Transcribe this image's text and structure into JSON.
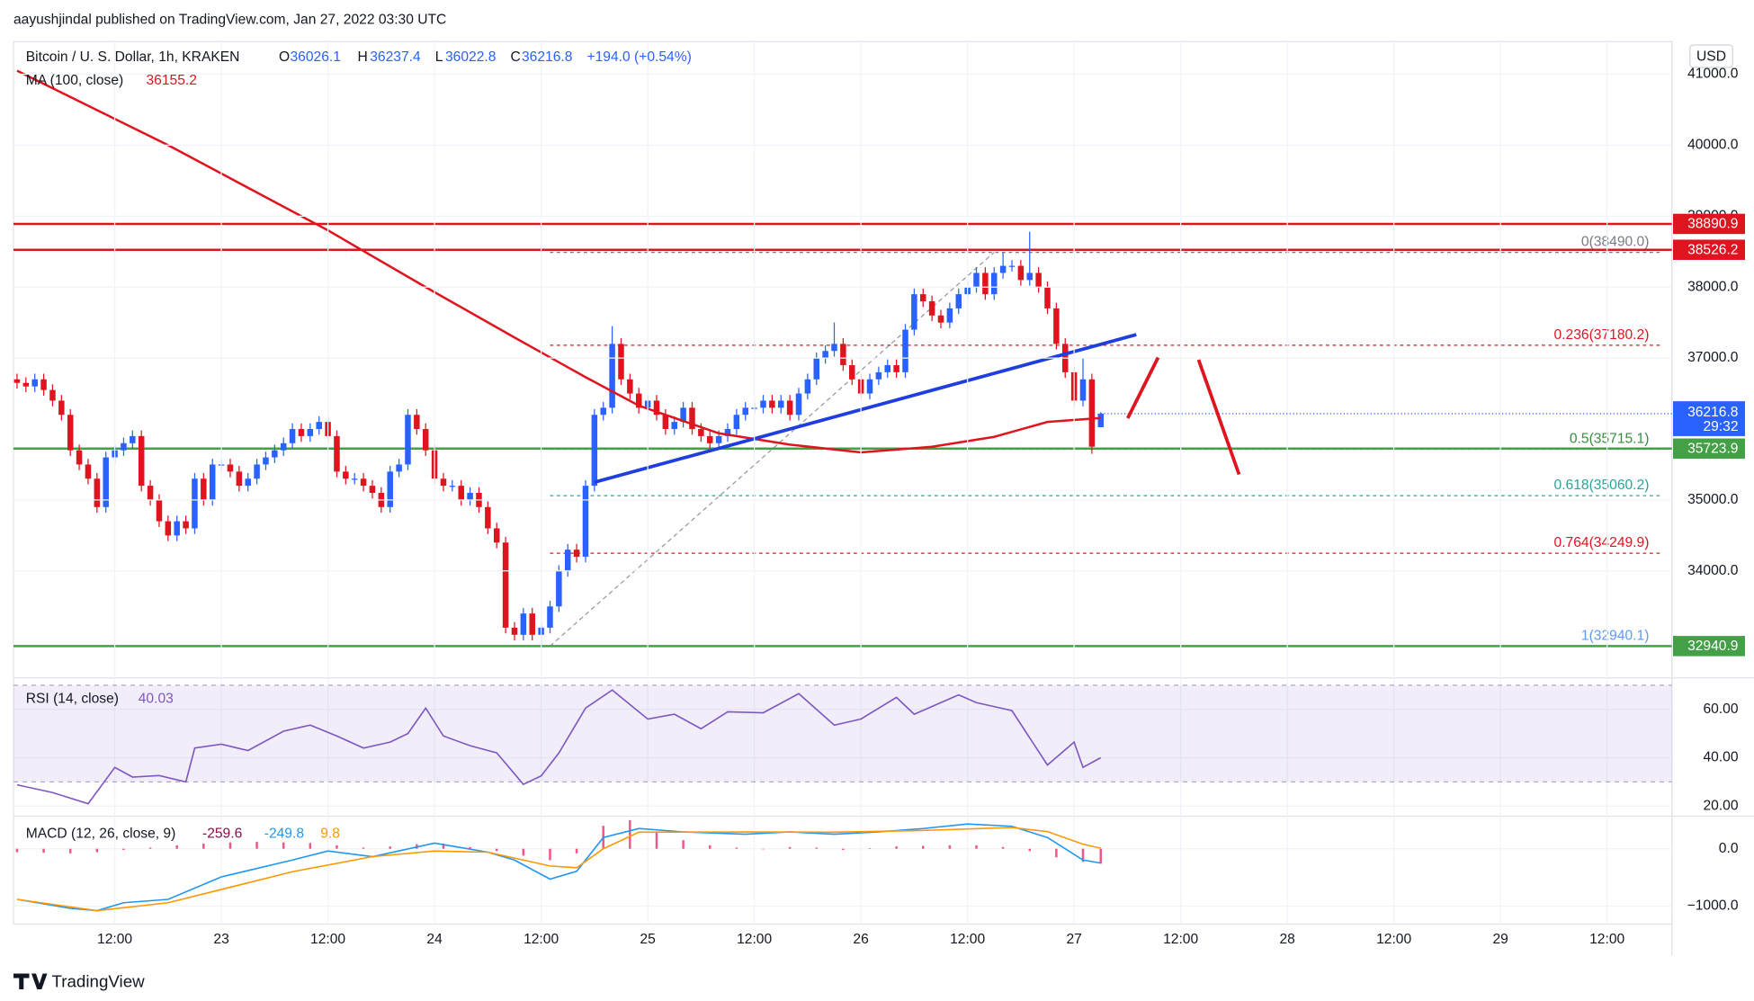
{
  "header": {
    "byline": "aayushjindal published on TradingView.com, Jan 27, 2022 03:30 UTC"
  },
  "footer": {
    "brand": "TradingView"
  },
  "chart_data": {
    "type": "candlestick",
    "symbol": "Bitcoin / U. S. Dollar, 1h, KRAKEN",
    "ohlc_letters": [
      "O",
      "H",
      "L",
      "C"
    ],
    "change": "+194.0 (+0.54%)",
    "currency": "USD",
    "countdown": "29:32",
    "up_color": "#2962ff",
    "down_color": "#e0141e",
    "xlim": [
      -0.4,
      186.3
    ],
    "ylim": [
      32524,
      41460
    ],
    "xticks": [
      {
        "value": 11,
        "label": "12:00"
      },
      {
        "value": 23,
        "label": "23"
      },
      {
        "value": 35,
        "label": "12:00"
      },
      {
        "value": 47,
        "label": "24"
      },
      {
        "value": 59,
        "label": "12:00"
      },
      {
        "value": 71,
        "label": "25"
      },
      {
        "value": 83,
        "label": "12:00"
      },
      {
        "value": 95,
        "label": "26"
      },
      {
        "value": 107,
        "label": "12:00"
      },
      {
        "value": 119,
        "label": "27"
      },
      {
        "value": 131,
        "label": "12:00"
      },
      {
        "value": 143,
        "label": "28"
      },
      {
        "value": 155,
        "label": "12:00"
      },
      {
        "value": 167,
        "label": "29"
      },
      {
        "value": 179,
        "label": "12:00"
      }
    ],
    "yticks": [
      {
        "value": 34000,
        "label": "34000.0"
      },
      {
        "value": 35000,
        "label": "35000.0"
      },
      {
        "value": 37000,
        "label": "37000.0"
      },
      {
        "value": 38000,
        "label": "38000.0"
      },
      {
        "value": 39000,
        "label": "39000.0"
      },
      {
        "value": 40000,
        "label": "40000.0"
      },
      {
        "value": 41000,
        "label": "41000.0"
      }
    ],
    "grid": true,
    "candles": [
      [
        36700,
        36780,
        36570,
        36650
      ],
      [
        36650,
        36730,
        36520,
        36600
      ],
      [
        36600,
        36780,
        36520,
        36700
      ],
      [
        36700,
        36780,
        36470,
        36550
      ],
      [
        36550,
        36630,
        36320,
        36400
      ],
      [
        36400,
        36480,
        36120,
        36200
      ],
      [
        36200,
        36280,
        35620,
        35700
      ],
      [
        35700,
        35780,
        35420,
        35500
      ],
      [
        35500,
        35580,
        35220,
        35300
      ],
      [
        35300,
        35380,
        34820,
        34900
      ],
      [
        34900,
        35680,
        34820,
        35600
      ],
      [
        35600,
        35780,
        35520,
        35700
      ],
      [
        35700,
        35880,
        35620,
        35800
      ],
      [
        35800,
        35980,
        35720,
        35900
      ],
      [
        35900,
        35980,
        35120,
        35200
      ],
      [
        35200,
        35280,
        34920,
        35000
      ],
      [
        35000,
        35080,
        34620,
        34700
      ],
      [
        34700,
        34780,
        34420,
        34500
      ],
      [
        34500,
        34780,
        34420,
        34700
      ],
      [
        34700,
        34780,
        34520,
        34600
      ],
      [
        34600,
        35380,
        34520,
        35300
      ],
      [
        35300,
        35380,
        34920,
        35000
      ],
      [
        35000,
        35580,
        34920,
        35500
      ],
      [
        35500,
        35580,
        35420,
        35500
      ],
      [
        35500,
        35580,
        35320,
        35400
      ],
      [
        35400,
        35480,
        35120,
        35200
      ],
      [
        35200,
        35380,
        35120,
        35300
      ],
      [
        35300,
        35580,
        35220,
        35500
      ],
      [
        35500,
        35680,
        35420,
        35600
      ],
      [
        35600,
        35780,
        35520,
        35700
      ],
      [
        35700,
        35880,
        35620,
        35800
      ],
      [
        35800,
        36080,
        35720,
        36000
      ],
      [
        36000,
        36080,
        35820,
        35900
      ],
      [
        35900,
        36080,
        35820,
        36000
      ],
      [
        36000,
        36180,
        35920,
        36100
      ],
      [
        36100,
        36180,
        35820,
        35900
      ],
      [
        35900,
        35980,
        35320,
        35400
      ],
      [
        35400,
        35480,
        35220,
        35300
      ],
      [
        35300,
        35380,
        35220,
        35300
      ],
      [
        35300,
        35380,
        35120,
        35200
      ],
      [
        35200,
        35280,
        35020,
        35100
      ],
      [
        35100,
        35180,
        34820,
        34900
      ],
      [
        34900,
        35480,
        34820,
        35400
      ],
      [
        35400,
        35580,
        35320,
        35500
      ],
      [
        35500,
        36280,
        35420,
        36200
      ],
      [
        36200,
        36280,
        35920,
        36000
      ],
      [
        36000,
        36080,
        35620,
        35700
      ],
      [
        35700,
        35780,
        35220,
        35300
      ],
      [
        35300,
        35380,
        35120,
        35200
      ],
      [
        35200,
        35280,
        35120,
        35200
      ],
      [
        35200,
        35280,
        34920,
        35000
      ],
      [
        35000,
        35180,
        34920,
        35100
      ],
      [
        35100,
        35180,
        34820,
        34900
      ],
      [
        34900,
        34980,
        34520,
        34600
      ],
      [
        34600,
        34680,
        34320,
        34400
      ],
      [
        34400,
        34480,
        33120,
        33200
      ],
      [
        33200,
        33280,
        33020,
        33100
      ],
      [
        33100,
        33480,
        33020,
        33400
      ],
      [
        33400,
        33480,
        33020,
        33100
      ],
      [
        33100,
        33280,
        32940,
        33200
      ],
      [
        33200,
        33580,
        33120,
        33500
      ],
      [
        33500,
        34080,
        33420,
        34000
      ],
      [
        34000,
        34380,
        33920,
        34300
      ],
      [
        34300,
        34380,
        34120,
        34200
      ],
      [
        34200,
        35280,
        34120,
        35200
      ],
      [
        35200,
        36280,
        35120,
        36200
      ],
      [
        36200,
        36380,
        36120,
        36300
      ],
      [
        36300,
        37450,
        36220,
        37200
      ],
      [
        37200,
        37280,
        36620,
        36700
      ],
      [
        36700,
        36780,
        36420,
        36500
      ],
      [
        36500,
        36580,
        36220,
        36300
      ],
      [
        36300,
        36480,
        36220,
        36400
      ],
      [
        36400,
        36480,
        36120,
        36200
      ],
      [
        36200,
        36280,
        35920,
        36000
      ],
      [
        36000,
        36180,
        35920,
        36100
      ],
      [
        36100,
        36380,
        36020,
        36300
      ],
      [
        36300,
        36380,
        35920,
        36000
      ],
      [
        36000,
        36080,
        35820,
        35900
      ],
      [
        35900,
        35980,
        35720,
        35800
      ],
      [
        35800,
        35980,
        35720,
        35900
      ],
      [
        35900,
        36080,
        35820,
        36000
      ],
      [
        36000,
        36280,
        35920,
        36200
      ],
      [
        36200,
        36380,
        36120,
        36300
      ],
      [
        36300,
        36380,
        36220,
        36300
      ],
      [
        36300,
        36480,
        36220,
        36400
      ],
      [
        36400,
        36480,
        36220,
        36300
      ],
      [
        36300,
        36480,
        36220,
        36400
      ],
      [
        36400,
        36480,
        36120,
        36200
      ],
      [
        36200,
        36580,
        36120,
        36500
      ],
      [
        36500,
        36780,
        36420,
        36700
      ],
      [
        36700,
        37080,
        36620,
        37000
      ],
      [
        37000,
        37180,
        36920,
        37100
      ],
      [
        37100,
        37500,
        37020,
        37200
      ],
      [
        37200,
        37280,
        36820,
        36900
      ],
      [
        36900,
        36980,
        36620,
        36700
      ],
      [
        36700,
        36780,
        36420,
        36500
      ],
      [
        36500,
        36780,
        36420,
        36700
      ],
      [
        36700,
        36880,
        36620,
        36800
      ],
      [
        36800,
        36980,
        36720,
        36900
      ],
      [
        36900,
        36980,
        36720,
        36800
      ],
      [
        36800,
        37480,
        36720,
        37400
      ],
      [
        37400,
        37980,
        37320,
        37900
      ],
      [
        37900,
        37980,
        37720,
        37800
      ],
      [
        37800,
        37880,
        37520,
        37600
      ],
      [
        37600,
        37680,
        37420,
        37500
      ],
      [
        37500,
        37780,
        37420,
        37700
      ],
      [
        37700,
        37980,
        37620,
        37900
      ],
      [
        37900,
        38080,
        37820,
        38000
      ],
      [
        38000,
        38280,
        37920,
        38200
      ],
      [
        38200,
        38280,
        37820,
        37900
      ],
      [
        37900,
        38280,
        37820,
        38200
      ],
      [
        38200,
        38490,
        38120,
        38300
      ],
      [
        38300,
        38380,
        38220,
        38300
      ],
      [
        38300,
        38380,
        38020,
        38100
      ],
      [
        38100,
        38780,
        38020,
        38200
      ],
      [
        38200,
        38280,
        37920,
        38000
      ],
      [
        38000,
        38080,
        37620,
        37700
      ],
      [
        37700,
        37780,
        37120,
        37200
      ],
      [
        37200,
        37280,
        36720,
        36800
      ],
      [
        36800,
        36880,
        36320,
        36400
      ],
      [
        36400,
        37000,
        36320,
        36700
      ],
      [
        36700,
        36780,
        35650,
        35750
      ],
      [
        36026.1,
        36237.4,
        36022.8,
        36216.8
      ]
    ],
    "ma": {
      "name": "MA (100, close)",
      "color": "#e0141e",
      "x": [
        0,
        17,
        35,
        46,
        56,
        64,
        70,
        79,
        87,
        95,
        103,
        110,
        116,
        122
      ],
      "values": [
        41050,
        40000,
        38800,
        38000,
        37290,
        36730,
        36330,
        35940,
        35780,
        35670,
        35750,
        35890,
        36100,
        36155.2
      ]
    },
    "levels": [
      {
        "value": 38890.9,
        "color": "#e0141e"
      },
      {
        "value": 38526.2,
        "color": "#e0141e"
      },
      {
        "value": 35723.9,
        "color": "#43a047"
      },
      {
        "value": 32940.9,
        "color": "#43a047"
      }
    ],
    "trendline": {
      "color": "#1e3ee0",
      "x": [
        65,
        126
      ],
      "values": [
        35250,
        37330
      ]
    },
    "fib": {
      "x": [
        60,
        185
      ],
      "diagonal_x": [
        60,
        110
      ],
      "levels": [
        {
          "value": 38490,
          "label": "0(38490.0)",
          "color": "#787b86"
        },
        {
          "value": 37180.2,
          "label": "0.236(37180.2)",
          "color": "#e0141e"
        },
        {
          "value": 35715.1,
          "label": "0.5(35715.1)",
          "color": "#388e3c"
        },
        {
          "value": 35060.2,
          "label": "0.618(35060.2)",
          "color": "#26a69a"
        },
        {
          "value": 34249.9,
          "label": "0.764(34249.9)",
          "color": "#e0141e"
        },
        {
          "value": 32940.1,
          "label": "1(32940.1)",
          "color": "#5b9cf6"
        }
      ]
    },
    "rsi": {
      "name": "RSI (14, close)",
      "color": "#7e57c2",
      "ylim": [
        16.3,
        72.1
      ],
      "band": [
        30,
        70
      ],
      "yticks": [
        {
          "value": 60,
          "label": "60.00"
        },
        {
          "value": 40,
          "label": "40.00"
        },
        {
          "value": 20,
          "label": "20.00"
        }
      ],
      "x": [
        0,
        4,
        8,
        11,
        13,
        16,
        19,
        20,
        23,
        26,
        30,
        33,
        36,
        39,
        42,
        44,
        46,
        48,
        51,
        54,
        57,
        59,
        61,
        64,
        67,
        71,
        74,
        77,
        80,
        84,
        88,
        92,
        95,
        99,
        101,
        106,
        108,
        112,
        116,
        119,
        120,
        122
      ],
      "values": [
        28.8,
        25.6,
        21,
        36,
        32,
        32.6,
        30,
        44,
        45.6,
        43,
        51,
        53.5,
        49,
        44,
        46.5,
        50,
        60.5,
        49,
        45,
        42,
        29,
        32.5,
        42,
        60.5,
        68,
        56,
        58,
        52,
        59,
        58.6,
        66.5,
        53.5,
        56,
        65,
        58,
        66,
        62.8,
        59.5,
        37,
        46.5,
        36,
        40.03
      ]
    },
    "macd": {
      "name": "MACD (12, 26, close, 9)",
      "ylim": [
        -1314,
        529
      ],
      "yticks": [
        {
          "value": 0,
          "label": "0.0"
        },
        {
          "value": -1000,
          "label": "−1000.0"
        }
      ],
      "hist": {
        "color": "#e91e63",
        "label_color": "#880e4f",
        "x": [
          0,
          3,
          6,
          9,
          12,
          15,
          18,
          21,
          24,
          27,
          30,
          33,
          36,
          39,
          42,
          45,
          48,
          51,
          54,
          57,
          60,
          63,
          66,
          69,
          72,
          75,
          78,
          81,
          84,
          87,
          90,
          93,
          96,
          99,
          102,
          105,
          108,
          111,
          114,
          117,
          120,
          122
        ],
        "values": [
          -60,
          -70,
          -80,
          -60,
          -20,
          20,
          60,
          90,
          110,
          120,
          110,
          100,
          60,
          20,
          40,
          80,
          90,
          30,
          -40,
          -120,
          -200,
          -80,
          400,
          500,
          300,
          150,
          60,
          20,
          0,
          30,
          20,
          -20,
          10,
          40,
          50,
          60,
          60,
          30,
          -40,
          -150,
          -230,
          -259.6
        ]
      },
      "line": {
        "color": "#2196f3",
        "x": [
          0,
          6,
          9,
          12,
          17,
          23,
          31,
          35,
          40,
          47,
          53,
          56,
          60,
          63,
          66,
          70,
          75,
          82,
          87,
          92,
          97,
          102,
          107,
          112,
          116,
          120,
          122
        ],
        "values": [
          -882,
          -1040,
          -1078,
          -941,
          -882,
          -490,
          -196,
          -39,
          -137,
          98,
          -59,
          -196,
          -529,
          -392,
          196,
          353,
          294,
          255,
          294,
          255,
          294,
          353,
          431,
          392,
          196,
          -196,
          -249.8
        ]
      },
      "signal": {
        "color": "#ff9800",
        "x": [
          0,
          9,
          17,
          31,
          40,
          47,
          53,
          60,
          63,
          66,
          70,
          82,
          92,
          102,
          112,
          116,
          120,
          122
        ],
        "values": [
          -882,
          -1078,
          -941,
          -400,
          -137,
          -40,
          -60,
          -300,
          -330,
          0,
          290,
          294,
          290,
          320,
          370,
          300,
          80,
          9.8
        ]
      }
    }
  }
}
